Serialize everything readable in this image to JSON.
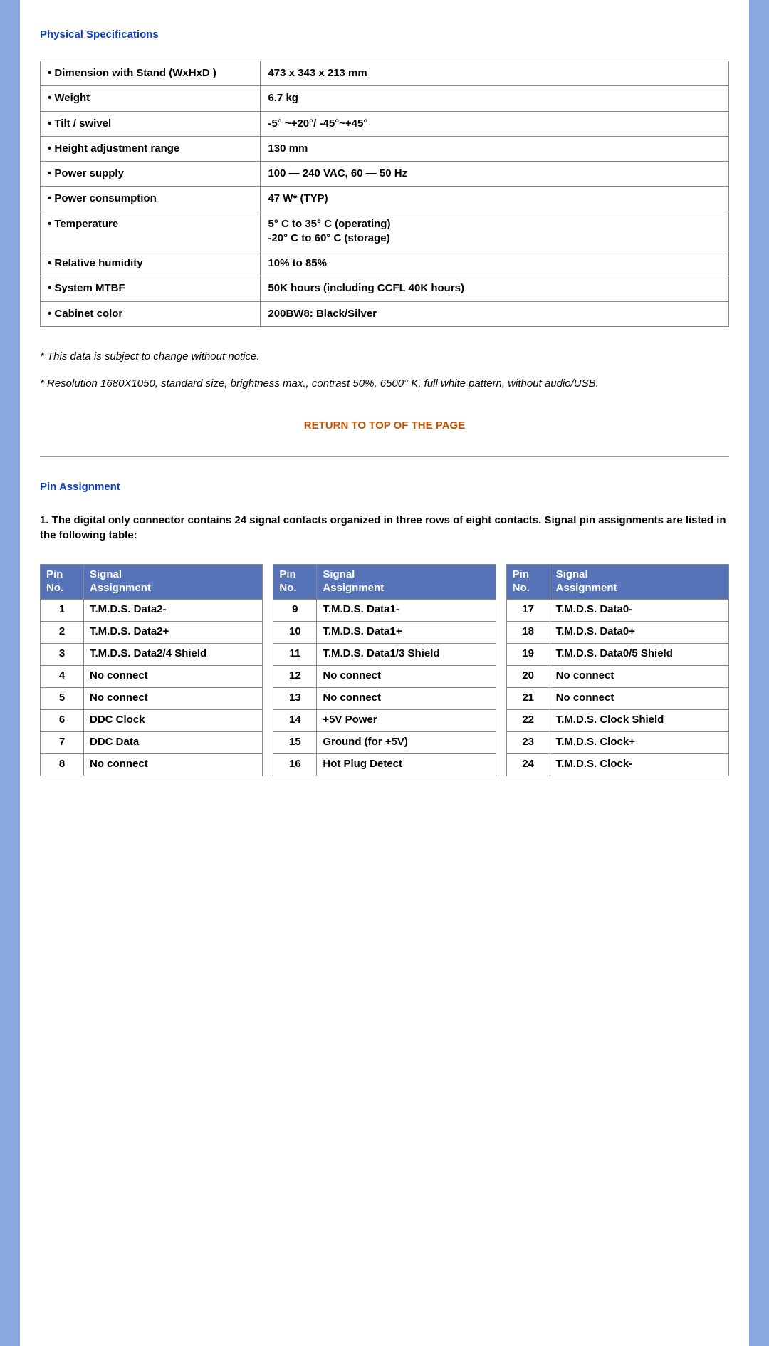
{
  "colors": {
    "page_bg": "#8ba8e0",
    "content_bg": "#ffffff",
    "section_title": "#1040c0",
    "link": "#c05000",
    "header_bg": "#5773b7",
    "header_fg": "#ffffff",
    "border": "#888888",
    "text": "#000000"
  },
  "typography": {
    "base_font": "Arial",
    "base_size_pt": 11,
    "title_size_pt": 11
  },
  "sections": {
    "physical": {
      "title": "Physical Specifications",
      "rows": [
        {
          "label": "• Dimension with Stand (WxHxD )",
          "value": "473 x 343 x 213 mm"
        },
        {
          "label": "• Weight",
          "value": "6.7 kg"
        },
        {
          "label": "• Tilt / swivel",
          "value": "-5° ~+20°/ -45°~+45°"
        },
        {
          "label": "• Height adjustment range",
          "value": "130 mm"
        },
        {
          "label": "• Power supply",
          "value": "100 — 240 VAC, 60 — 50 Hz"
        },
        {
          "label": "• Power consumption",
          "value": "47 W* (TYP)"
        },
        {
          "label": "• Temperature",
          "value": "5° C to 35° C (operating)\n-20° C to 60° C (storage)"
        },
        {
          "label": "• Relative humidity",
          "value": "10% to 85%"
        },
        {
          "label": "• System MTBF",
          "value": "50K hours (including CCFL 40K hours)"
        },
        {
          "label": "• Cabinet color",
          "value": "200BW8: Black/Silver"
        }
      ],
      "note1": "* This data is subject to change without notice.",
      "note2": "* Resolution 1680X1050, standard size, brightness max., contrast 50%, 6500° K, full white pattern, without audio/USB."
    },
    "return_link": "RETURN TO TOP OF THE PAGE",
    "pin": {
      "title": "Pin Assignment",
      "intro": "1. The digital only connector contains 24 signal contacts organized in three rows of eight contacts. Signal pin assignments are listed in the following table:",
      "headers": {
        "pin": "Pin No.",
        "signal": "Signal Assignment"
      },
      "columns": [
        [
          {
            "n": "1",
            "s": "T.M.D.S. Data2-"
          },
          {
            "n": "2",
            "s": "T.M.D.S. Data2+"
          },
          {
            "n": "3",
            "s": "T.M.D.S. Data2/4 Shield"
          },
          {
            "n": "4",
            "s": "No connect"
          },
          {
            "n": "5",
            "s": "No connect"
          },
          {
            "n": "6",
            "s": "DDC Clock"
          },
          {
            "n": "7",
            "s": "DDC Data"
          },
          {
            "n": "8",
            "s": "No connect"
          }
        ],
        [
          {
            "n": "9",
            "s": "T.M.D.S. Data1-"
          },
          {
            "n": "10",
            "s": "T.M.D.S. Data1+"
          },
          {
            "n": "11",
            "s": "T.M.D.S. Data1/3 Shield"
          },
          {
            "n": "12",
            "s": "No connect"
          },
          {
            "n": "13",
            "s": "No connect"
          },
          {
            "n": "14",
            "s": "+5V Power"
          },
          {
            "n": "15",
            "s": "Ground (for +5V)"
          },
          {
            "n": "16",
            "s": "Hot Plug Detect"
          }
        ],
        [
          {
            "n": "17",
            "s": "T.M.D.S. Data0-"
          },
          {
            "n": "18",
            "s": "T.M.D.S. Data0+"
          },
          {
            "n": "19",
            "s": "T.M.D.S. Data0/5 Shield"
          },
          {
            "n": "20",
            "s": "No connect"
          },
          {
            "n": "21",
            "s": "No connect"
          },
          {
            "n": "22",
            "s": "T.M.D.S. Clock Shield"
          },
          {
            "n": "23",
            "s": "T.M.D.S. Clock+"
          },
          {
            "n": "24",
            "s": "T.M.D.S. Clock-"
          }
        ]
      ]
    }
  }
}
